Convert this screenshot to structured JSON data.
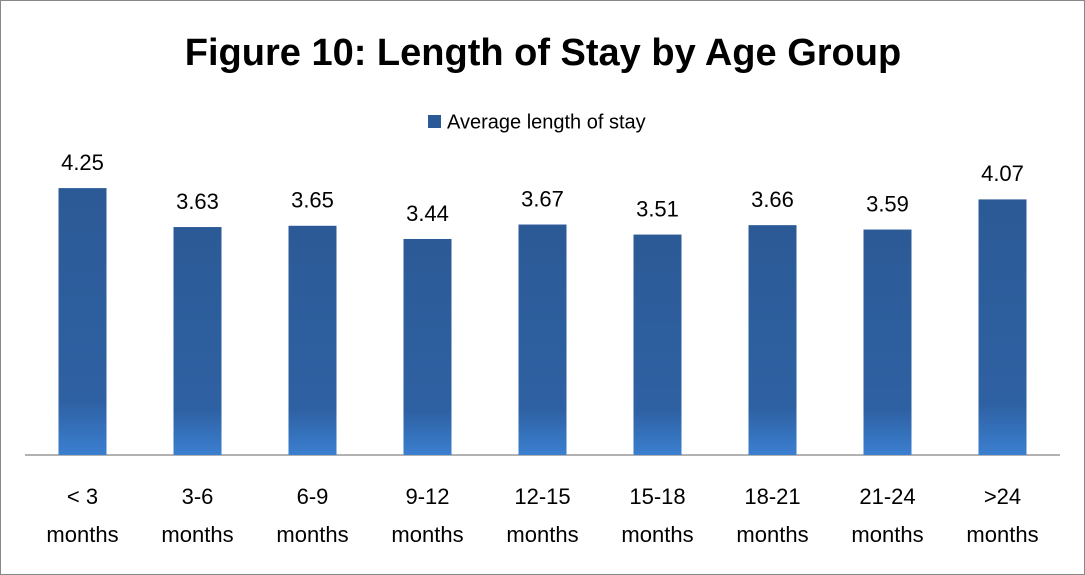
{
  "chart_data": {
    "type": "bar",
    "title": "Figure 10: Length of Stay by Age Group",
    "categories": [
      "< 3 months",
      "3-6 months",
      "6-9 months",
      "9-12 months",
      "12-15 months",
      "15-18 months",
      "18-21 months",
      "21-24 months",
      ">24 months"
    ],
    "series": [
      {
        "name": "Average length of stay",
        "color": "#2c5a96",
        "values": [
          4.25,
          3.63,
          3.65,
          3.44,
          3.67,
          3.51,
          3.66,
          3.59,
          4.07
        ]
      }
    ],
    "legend": "top"
  }
}
